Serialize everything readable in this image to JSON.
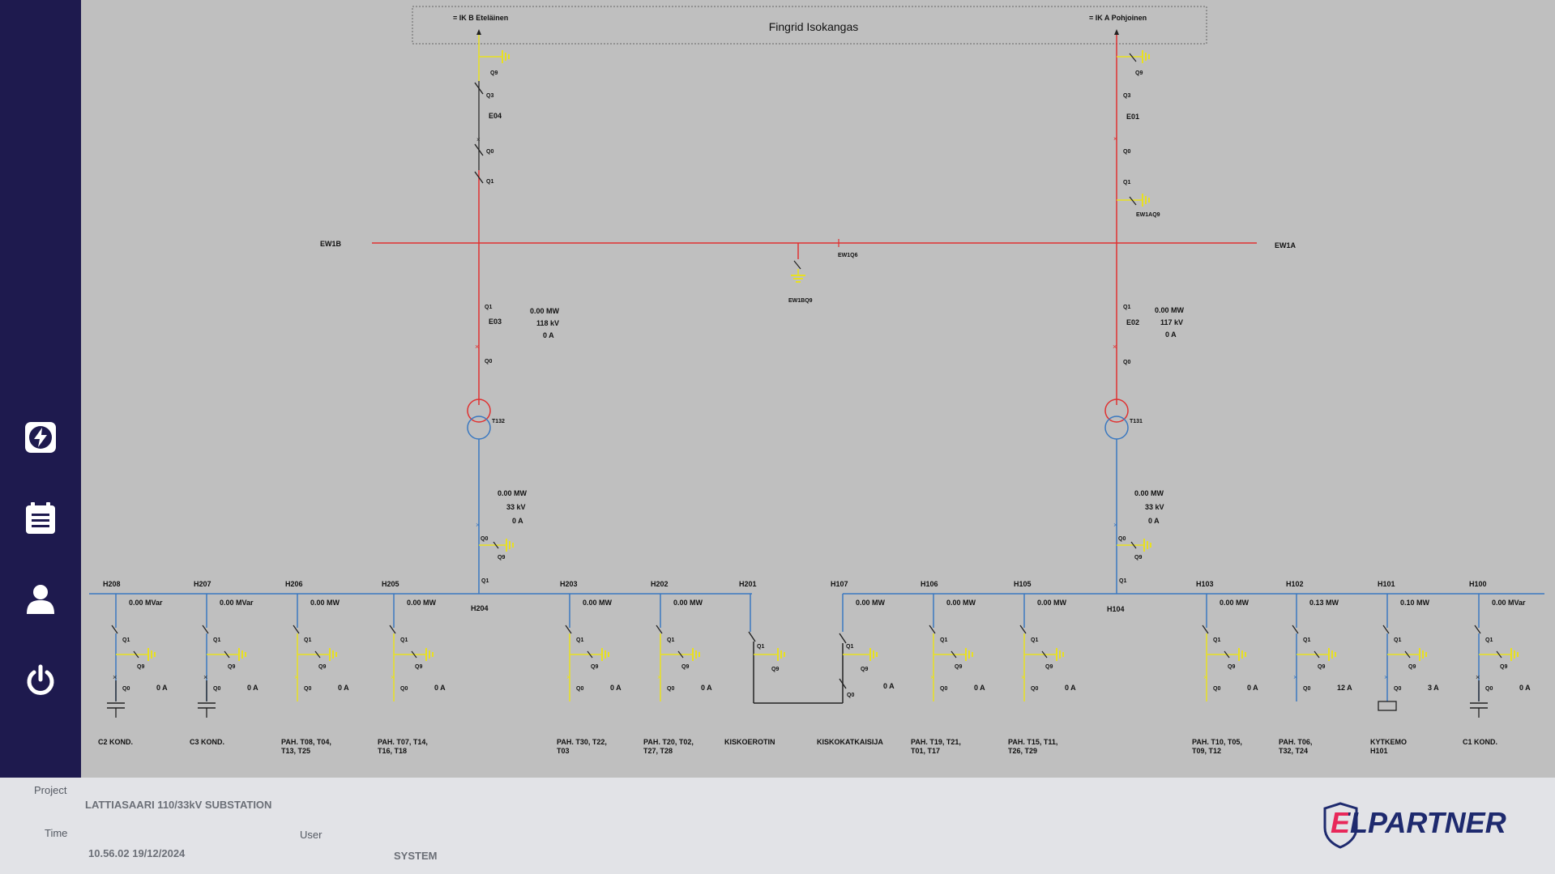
{
  "diagram": {
    "top_title": "Fingrid Isokangas",
    "incoming": {
      "left": "= IK B Eteläinen",
      "right": "= IK A Pohjoinen"
    },
    "busbars": {
      "hv_left": "EW1B",
      "hv_right": "EW1A",
      "coupler": "EW1Q6",
      "coupler_earth": "EW1BQ9"
    },
    "feeders_110": [
      {
        "id": "E04",
        "labels": [
          "Q9",
          "Q3",
          "Q0",
          "Q1"
        ]
      },
      {
        "id": "E01",
        "labels": [
          "Q9",
          "Q3",
          "Q0",
          "Q1",
          "EW1AQ9"
        ]
      }
    ],
    "transformer_bays": [
      {
        "bay": "E03",
        "q1": "Q1",
        "q0": "Q0",
        "power": "0.00 MW",
        "voltage": "118 kV",
        "current": "0 A",
        "transformer": "T132",
        "lv_power": "0.00 MW",
        "lv_voltage": "33 kV",
        "lv_current": "0 A",
        "lv_q0": "Q0",
        "lv_q9": "Q9",
        "lv_q1": "Q1",
        "bus_label": "H204"
      },
      {
        "bay": "E02",
        "q1": "Q1",
        "q0": "Q0",
        "power": "0.00 MW",
        "voltage": "117 kV",
        "current": "0 A",
        "transformer": "T131",
        "lv_power": "0.00 MW",
        "lv_voltage": "33 kV",
        "lv_current": "0 A",
        "lv_q0": "Q0",
        "lv_q9": "Q9",
        "lv_q1": "Q1",
        "bus_label": "H104"
      }
    ],
    "feeders_33": [
      {
        "id": "H208",
        "value": "0.00 MVar",
        "current": "0 A",
        "name": "C2 KOND.",
        "kind": "cap"
      },
      {
        "id": "H207",
        "value": "0.00 MVar",
        "current": "0 A",
        "name": "C3 KOND.",
        "kind": "cap"
      },
      {
        "id": "H206",
        "value": "0.00 MW",
        "current": "0 A",
        "name": "PAH. T08, T04,",
        "name2": "T13, T25",
        "kind": "yellow"
      },
      {
        "id": "H205",
        "value": "0.00 MW",
        "current": "0 A",
        "name": "PAH. T07, T14,",
        "name2": "T16, T18",
        "kind": "yellow"
      },
      {
        "id": "H203",
        "value": "0.00 MW",
        "current": "0 A",
        "name": "PAH. T30, T22,",
        "name2": "T03",
        "kind": "yellow"
      },
      {
        "id": "H202",
        "value": "0.00 MW",
        "current": "0 A",
        "name": "PAH. T20, T02,",
        "name2": "T27, T28",
        "kind": "yellow"
      },
      {
        "id": "H201",
        "value": "",
        "current": "",
        "name": "KISKOEROTIN",
        "kind": "coupler-left"
      },
      {
        "id": "H107",
        "value": "0.00 MW",
        "current": "0 A",
        "name": "KISKOKATKAISIJA",
        "kind": "coupler-right"
      },
      {
        "id": "H106",
        "value": "0.00 MW",
        "current": "0 A",
        "name": "PAH. T19, T21,",
        "name2": "T01, T17",
        "kind": "yellow"
      },
      {
        "id": "H105",
        "value": "0.00 MW",
        "current": "0 A",
        "name": "PAH. T15, T11,",
        "name2": "T26, T29",
        "kind": "yellow"
      },
      {
        "id": "H103",
        "value": "0.00 MW",
        "current": "0 A",
        "name": "PAH. T10, T05,",
        "name2": "T09, T12",
        "kind": "yellow"
      },
      {
        "id": "H102",
        "value": "0.13 MW",
        "current": "12 A",
        "name": "PAH. T06,",
        "name2": "T32, T24",
        "kind": "blue"
      },
      {
        "id": "H101",
        "value": "0.10 MW",
        "current": "3 A",
        "name": "KYTKEMO",
        "name2": "H101",
        "kind": "box"
      },
      {
        "id": "H100",
        "value": "0.00 MVar",
        "current": "0 A",
        "name": "C1 KOND.",
        "kind": "cap"
      }
    ],
    "switch_labels": {
      "q1": "Q1",
      "q9": "Q9",
      "q0": "Q0"
    }
  },
  "footer": {
    "project_label": "Project",
    "project_value": "LATTIASAARI 110/33kV SUBSTATION",
    "time_label": "Time",
    "time_value": "10.56.02 19/12/2024",
    "user_label": "User",
    "user_value": "SYSTEM",
    "logo_text": "ELPARTNER",
    "logo_accent": "E"
  },
  "sidebar": {
    "items": [
      {
        "icon": "lightning-icon"
      },
      {
        "icon": "clipboard-icon"
      },
      {
        "icon": "user-icon"
      },
      {
        "icon": "power-icon"
      }
    ]
  },
  "colors": {
    "hv": "#e03030",
    "lv": "#3a78c0",
    "earth": "#e8e020",
    "dark": "#222222",
    "sidebar": "#1e1a4e",
    "logo_pink": "#e8285a",
    "logo_navy": "#1e2a6e"
  }
}
